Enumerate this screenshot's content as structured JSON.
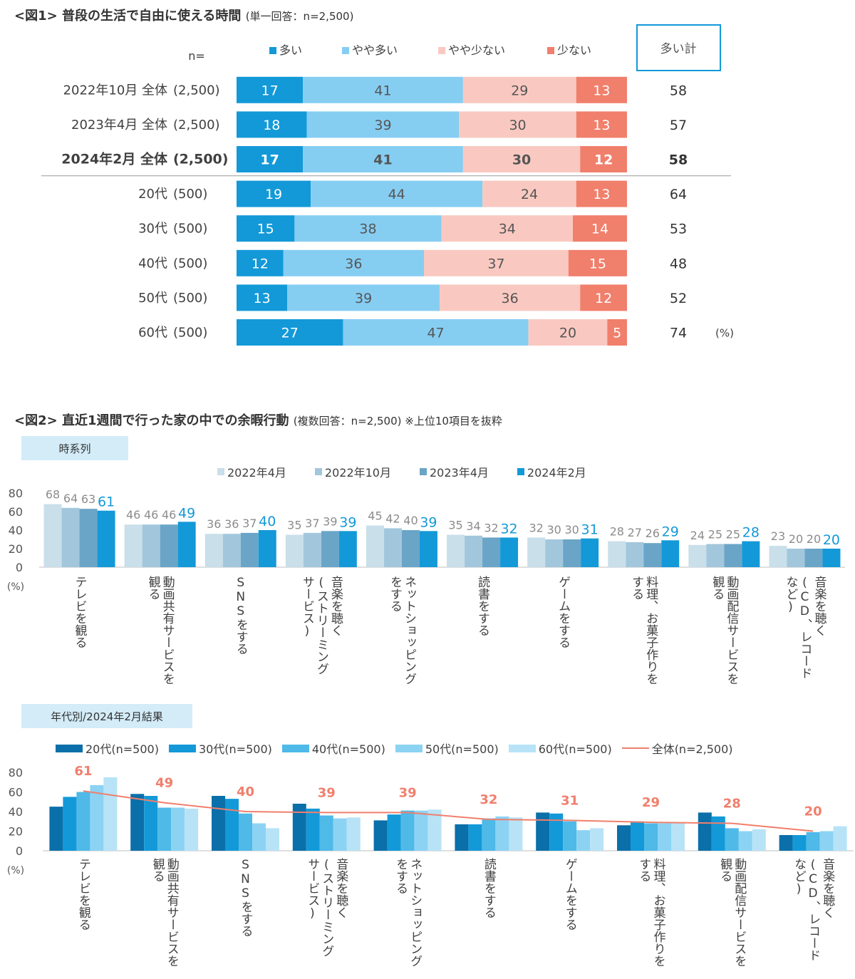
{
  "fig1": {
    "title": "<図1> 普段の生活で自由に使える時間",
    "subtitle": "(単一回答：n=2,500)",
    "n_label": "n=",
    "sum_header": "多い計",
    "pct_label": "(%)",
    "legend": [
      "多い",
      "やや多い",
      "やや少ない",
      "少ない"
    ],
    "colors": [
      "#1399d8",
      "#86cdf2",
      "#f9c9c1",
      "#f07f6c"
    ],
    "rows": [
      {
        "label": "2022年10月 全体",
        "n": "(2,500)",
        "values": [
          17,
          41,
          29,
          13
        ],
        "sum": 58,
        "bold": false
      },
      {
        "label": "2023年4月 全体",
        "n": "(2,500)",
        "values": [
          18,
          39,
          30,
          13
        ],
        "sum": 57,
        "bold": false
      },
      {
        "label": "2024年2月 全体",
        "n": "(2,500)",
        "values": [
          17,
          41,
          30,
          12
        ],
        "sum": 58,
        "bold": true
      },
      {
        "label": "20代",
        "n": "(500)",
        "values": [
          19,
          44,
          24,
          13
        ],
        "sum": 64,
        "bold": false
      },
      {
        "label": "30代",
        "n": "(500)",
        "values": [
          15,
          38,
          34,
          14
        ],
        "sum": 53,
        "bold": false
      },
      {
        "label": "40代",
        "n": "(500)",
        "values": [
          12,
          36,
          37,
          15
        ],
        "sum": 48,
        "bold": false
      },
      {
        "label": "50代",
        "n": "(500)",
        "values": [
          13,
          39,
          36,
          12
        ],
        "sum": 52,
        "bold": false
      },
      {
        "label": "60代",
        "n": "(500)",
        "values": [
          27,
          47,
          20,
          5
        ],
        "sum": 74,
        "bold": false
      }
    ]
  },
  "fig2": {
    "title": "<図2> 直近1週間で行った家の中での余暇行動",
    "subtitle": "(複数回答：n=2,500) ※上位10項目を抜粋",
    "categories": [
      [
        "テレビを観る"
      ],
      [
        "動画共有サービスを",
        "観る"
      ],
      [
        "SNSをする"
      ],
      [
        "音楽を聴く",
        "(ストリーミング",
        "サービス)"
      ],
      [
        "ネットショッピング",
        "をする"
      ],
      [
        "読書をする"
      ],
      [
        "ゲームをする"
      ],
      [
        "料理、お菓子作りを",
        "する"
      ],
      [
        "動画配信サービスを",
        "観る"
      ],
      [
        "音楽を聴く",
        "(CD、レコード",
        "など)"
      ]
    ],
    "time_series": {
      "badge": "時系列",
      "type": "bar",
      "ylim": [
        0,
        80
      ],
      "yticks": [
        "80",
        "60",
        "40",
        "20",
        "0"
      ],
      "ylabel": "(%)",
      "series": [
        {
          "name": "2022年4月",
          "color": "#c9dfea",
          "values": [
            68,
            46,
            36,
            35,
            45,
            35,
            32,
            28,
            24,
            23
          ]
        },
        {
          "name": "2022年10月",
          "color": "#a2c7dd",
          "values": [
            64,
            46,
            36,
            37,
            42,
            34,
            30,
            27,
            25,
            20
          ]
        },
        {
          "name": "2023年4月",
          "color": "#6aa5c7",
          "values": [
            63,
            46,
            37,
            39,
            40,
            32,
            30,
            26,
            25,
            20
          ]
        },
        {
          "name": "2024年2月",
          "color": "#1399d8",
          "values": [
            61,
            49,
            40,
            39,
            39,
            32,
            31,
            29,
            28,
            20
          ]
        }
      ]
    },
    "by_age": {
      "badge": "年代別/2024年2月結果",
      "type": "bar",
      "ylim": [
        0,
        80
      ],
      "yticks": [
        "80",
        "60",
        "40",
        "20",
        "0"
      ],
      "ylabel": "(%)",
      "series": [
        {
          "name": "20代(n=500)",
          "color": "#0b6fa9",
          "values": [
            45,
            58,
            56,
            48,
            31,
            27,
            39,
            26,
            39,
            16
          ]
        },
        {
          "name": "30代(n=500)",
          "color": "#1399d8",
          "values": [
            55,
            56,
            53,
            43,
            37,
            27,
            38,
            30,
            35,
            16
          ]
        },
        {
          "name": "40代(n=500)",
          "color": "#4fb9e8",
          "values": [
            60,
            44,
            38,
            36,
            41,
            33,
            30,
            28,
            23,
            19
          ]
        },
        {
          "name": "50代(n=500)",
          "color": "#8cd3f3",
          "values": [
            67,
            44,
            28,
            33,
            41,
            35,
            21,
            28,
            20,
            20
          ]
        },
        {
          "name": "60代(n=500)",
          "color": "#b8e3f7",
          "values": [
            75,
            43,
            23,
            34,
            42,
            34,
            23,
            28,
            22,
            25
          ]
        }
      ],
      "line": {
        "name": "全体(n=2,500)",
        "color": "#f07f6c",
        "values": [
          61,
          49,
          40,
          39,
          39,
          32,
          31,
          29,
          28,
          20
        ]
      }
    }
  }
}
